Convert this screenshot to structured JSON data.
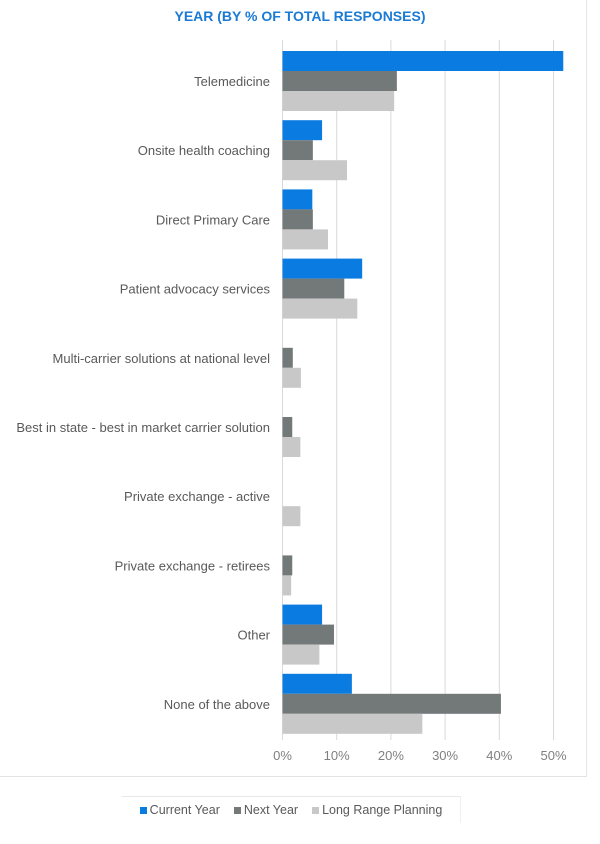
{
  "chart_data": {
    "type": "bar",
    "orientation": "horizontal",
    "title": "YEAR (BY % OF TOTAL RESPONSES)",
    "xlabel": "",
    "ylabel": "",
    "xlim": [
      0,
      52
    ],
    "xticks": [
      0,
      10,
      20,
      30,
      40,
      50
    ],
    "xtick_labels": [
      "0%",
      "10%",
      "20%",
      "30%",
      "40%",
      "50%"
    ],
    "grid": true,
    "legend_position": "bottom",
    "categories": [
      "Telemedicine",
      "Onsite health coaching",
      "Direct Primary Care",
      "Patient advocacy services",
      "Multi-carrier solutions at national level",
      "Best in state - best in market carrier solution",
      "Private exchange - active",
      "Private exchange - retirees",
      "Other",
      "None of the above"
    ],
    "series": [
      {
        "name": "Current Year",
        "color": "#0a7be0",
        "values": [
          51.8,
          7.3,
          5.5,
          14.7,
          0,
          0,
          0,
          0,
          7.3,
          12.8
        ]
      },
      {
        "name": "Next Year",
        "color": "#737879",
        "values": [
          21.1,
          5.6,
          5.6,
          11.4,
          1.9,
          1.8,
          0,
          1.8,
          9.5,
          40.3
        ]
      },
      {
        "name": "Long Range Planning",
        "color": "#c8c8c8",
        "values": [
          20.6,
          11.9,
          8.4,
          13.8,
          3.4,
          3.3,
          3.3,
          1.6,
          6.8,
          25.8
        ]
      }
    ]
  }
}
